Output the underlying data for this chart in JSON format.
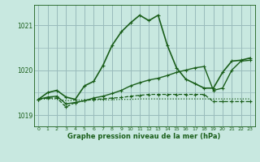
{
  "title": "",
  "xlabel": "Graphe pression niveau de la mer (hPa)",
  "ylabel": "",
  "xlim": [
    -0.5,
    23.5
  ],
  "ylim": [
    1018.75,
    1021.45
  ],
  "yticks": [
    1019,
    1020,
    1021
  ],
  "xticks": [
    0,
    1,
    2,
    3,
    4,
    5,
    6,
    7,
    8,
    9,
    10,
    11,
    12,
    13,
    14,
    15,
    16,
    17,
    18,
    19,
    20,
    21,
    22,
    23
  ],
  "bg_color": "#c8e8e0",
  "grid_color": "#99bbbb",
  "line_color": "#1a5e1a",
  "lines": [
    {
      "x": [
        0,
        1,
        2,
        3,
        4,
        5,
        6,
        7,
        8,
        9,
        10,
        11,
        12,
        13,
        14,
        15,
        16,
        17,
        18,
        19,
        20,
        21,
        22,
        23
      ],
      "y": [
        1019.35,
        1019.5,
        1019.55,
        1019.4,
        1019.35,
        1019.65,
        1019.75,
        1020.1,
        1020.55,
        1020.85,
        1021.05,
        1021.22,
        1021.1,
        1021.22,
        1020.55,
        1020.05,
        1019.8,
        1019.7,
        1019.6,
        1019.6,
        1019.95,
        1020.2,
        1020.22,
        1020.27
      ],
      "style": "-",
      "marker": "+",
      "lw": 1.2,
      "ms": 3.5
    },
    {
      "x": [
        0,
        1,
        2,
        3,
        4,
        5,
        6,
        7,
        8,
        9,
        10,
        11,
        12,
        13,
        14,
        15,
        16,
        17,
        18,
        19,
        20,
        21,
        22,
        23
      ],
      "y": [
        1019.35,
        1019.4,
        1019.42,
        1019.25,
        1019.28,
        1019.32,
        1019.38,
        1019.42,
        1019.48,
        1019.55,
        1019.65,
        1019.72,
        1019.78,
        1019.82,
        1019.88,
        1019.95,
        1020.0,
        1020.05,
        1020.08,
        1019.55,
        1019.6,
        1020.0,
        1020.2,
        1020.22
      ],
      "style": "-",
      "marker": "+",
      "lw": 1.0,
      "ms": 3.0
    },
    {
      "x": [
        0,
        1,
        2,
        3,
        4,
        5,
        6,
        7,
        8,
        9,
        10,
        11,
        12,
        13,
        14,
        15,
        16,
        17,
        18,
        19,
        20,
        21,
        22,
        23
      ],
      "y": [
        1019.35,
        1019.38,
        1019.38,
        1019.18,
        1019.28,
        1019.32,
        1019.35,
        1019.36,
        1019.38,
        1019.39,
        1019.42,
        1019.44,
        1019.46,
        1019.46,
        1019.46,
        1019.46,
        1019.46,
        1019.46,
        1019.46,
        1019.3,
        1019.3,
        1019.3,
        1019.3,
        1019.3
      ],
      "style": "--",
      "marker": "+",
      "lw": 0.9,
      "ms": 2.5
    },
    {
      "x": [
        0,
        1,
        2,
        3,
        4,
        5,
        6,
        7,
        8,
        9,
        10,
        11,
        12,
        13,
        14,
        15,
        16,
        17,
        18,
        19,
        20,
        21,
        22,
        23
      ],
      "y": [
        1019.35,
        1019.36,
        1019.36,
        1019.32,
        1019.33,
        1019.34,
        1019.34,
        1019.34,
        1019.34,
        1019.35,
        1019.35,
        1019.36,
        1019.36,
        1019.36,
        1019.36,
        1019.36,
        1019.36,
        1019.36,
        1019.36,
        1019.36,
        1019.36,
        1019.36,
        1019.36,
        1019.36
      ],
      "style": ":",
      "marker": null,
      "lw": 0.9,
      "ms": 0
    }
  ]
}
